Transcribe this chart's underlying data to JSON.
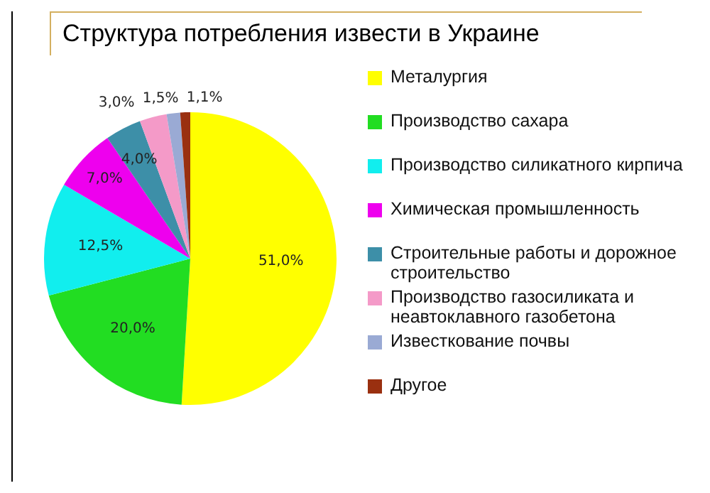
{
  "chart_data": {
    "type": "pie",
    "title": "Структура потребления извести в Украине",
    "categories": [
      "Металургия",
      "Производство сахара",
      "Производство силикатного кирпича",
      "Химическая промышленность",
      "Строительные работы и дорожное строительство",
      "Производство газосиликата и неавтоклавного газобетона",
      "Известкование почвы",
      "Другое"
    ],
    "values": [
      51.0,
      20.0,
      12.5,
      7.0,
      4.0,
      3.0,
      1.5,
      1.1
    ],
    "value_labels": [
      "51,0%",
      "20,0%",
      "12,5%",
      "7,0%",
      "4,0%",
      "3,0%",
      "1,5%",
      "1,1%"
    ],
    "colors": [
      "#ffff00",
      "#22dd22",
      "#11eeee",
      "#ee00ee",
      "#3d8fa8",
      "#f49ac8",
      "#9aaad4",
      "#9a3010"
    ],
    "legend": "right"
  }
}
